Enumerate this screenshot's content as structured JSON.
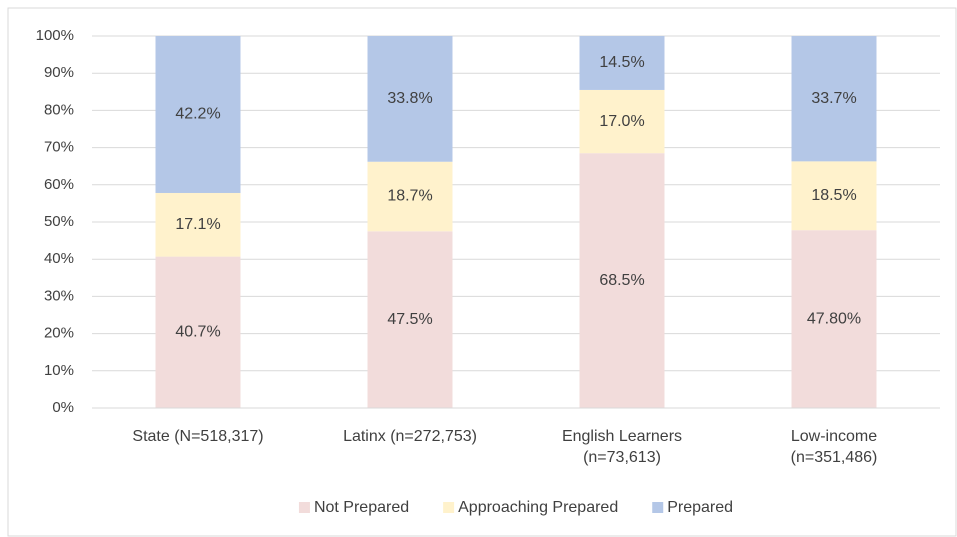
{
  "chart_data": {
    "type": "stacked_bar",
    "categories": [
      [
        "State (N=518,317)"
      ],
      [
        "Latinx (n=272,753)"
      ],
      [
        "English Learners",
        "(n=73,613)"
      ],
      [
        "Low-income",
        "(n=351,486)"
      ]
    ],
    "series": [
      {
        "name": "Not Prepared",
        "color": "#f2dcdb",
        "values": [
          40.7,
          47.5,
          68.5,
          47.8
        ],
        "value_labels": [
          "40.7%",
          "47.5%",
          "68.5%",
          "47.80%"
        ]
      },
      {
        "name": "Approaching Prepared",
        "color": "#fff2cc",
        "values": [
          17.1,
          18.7,
          17.0,
          18.5
        ],
        "value_labels": [
          "17.1%",
          "18.7%",
          "17.0%",
          "18.5%"
        ]
      },
      {
        "name": "Prepared",
        "color": "#b4c7e7",
        "values": [
          42.2,
          33.8,
          14.5,
          33.7
        ],
        "value_labels": [
          "42.2%",
          "33.8%",
          "14.5%",
          "33.7%"
        ]
      }
    ],
    "ylim": [
      0,
      100
    ],
    "yticks": [
      {
        "value": 0,
        "label": "0%"
      },
      {
        "value": 10,
        "label": "10%"
      },
      {
        "value": 20,
        "label": "20%"
      },
      {
        "value": 30,
        "label": "30%"
      },
      {
        "value": 40,
        "label": "40%"
      },
      {
        "value": 50,
        "label": "50%"
      },
      {
        "value": 60,
        "label": "60%"
      },
      {
        "value": 70,
        "label": "70%"
      },
      {
        "value": 80,
        "label": "80%"
      },
      {
        "value": 90,
        "label": "90%"
      },
      {
        "value": 100,
        "label": "100%"
      }
    ],
    "grid": true,
    "legend": "bottom"
  }
}
